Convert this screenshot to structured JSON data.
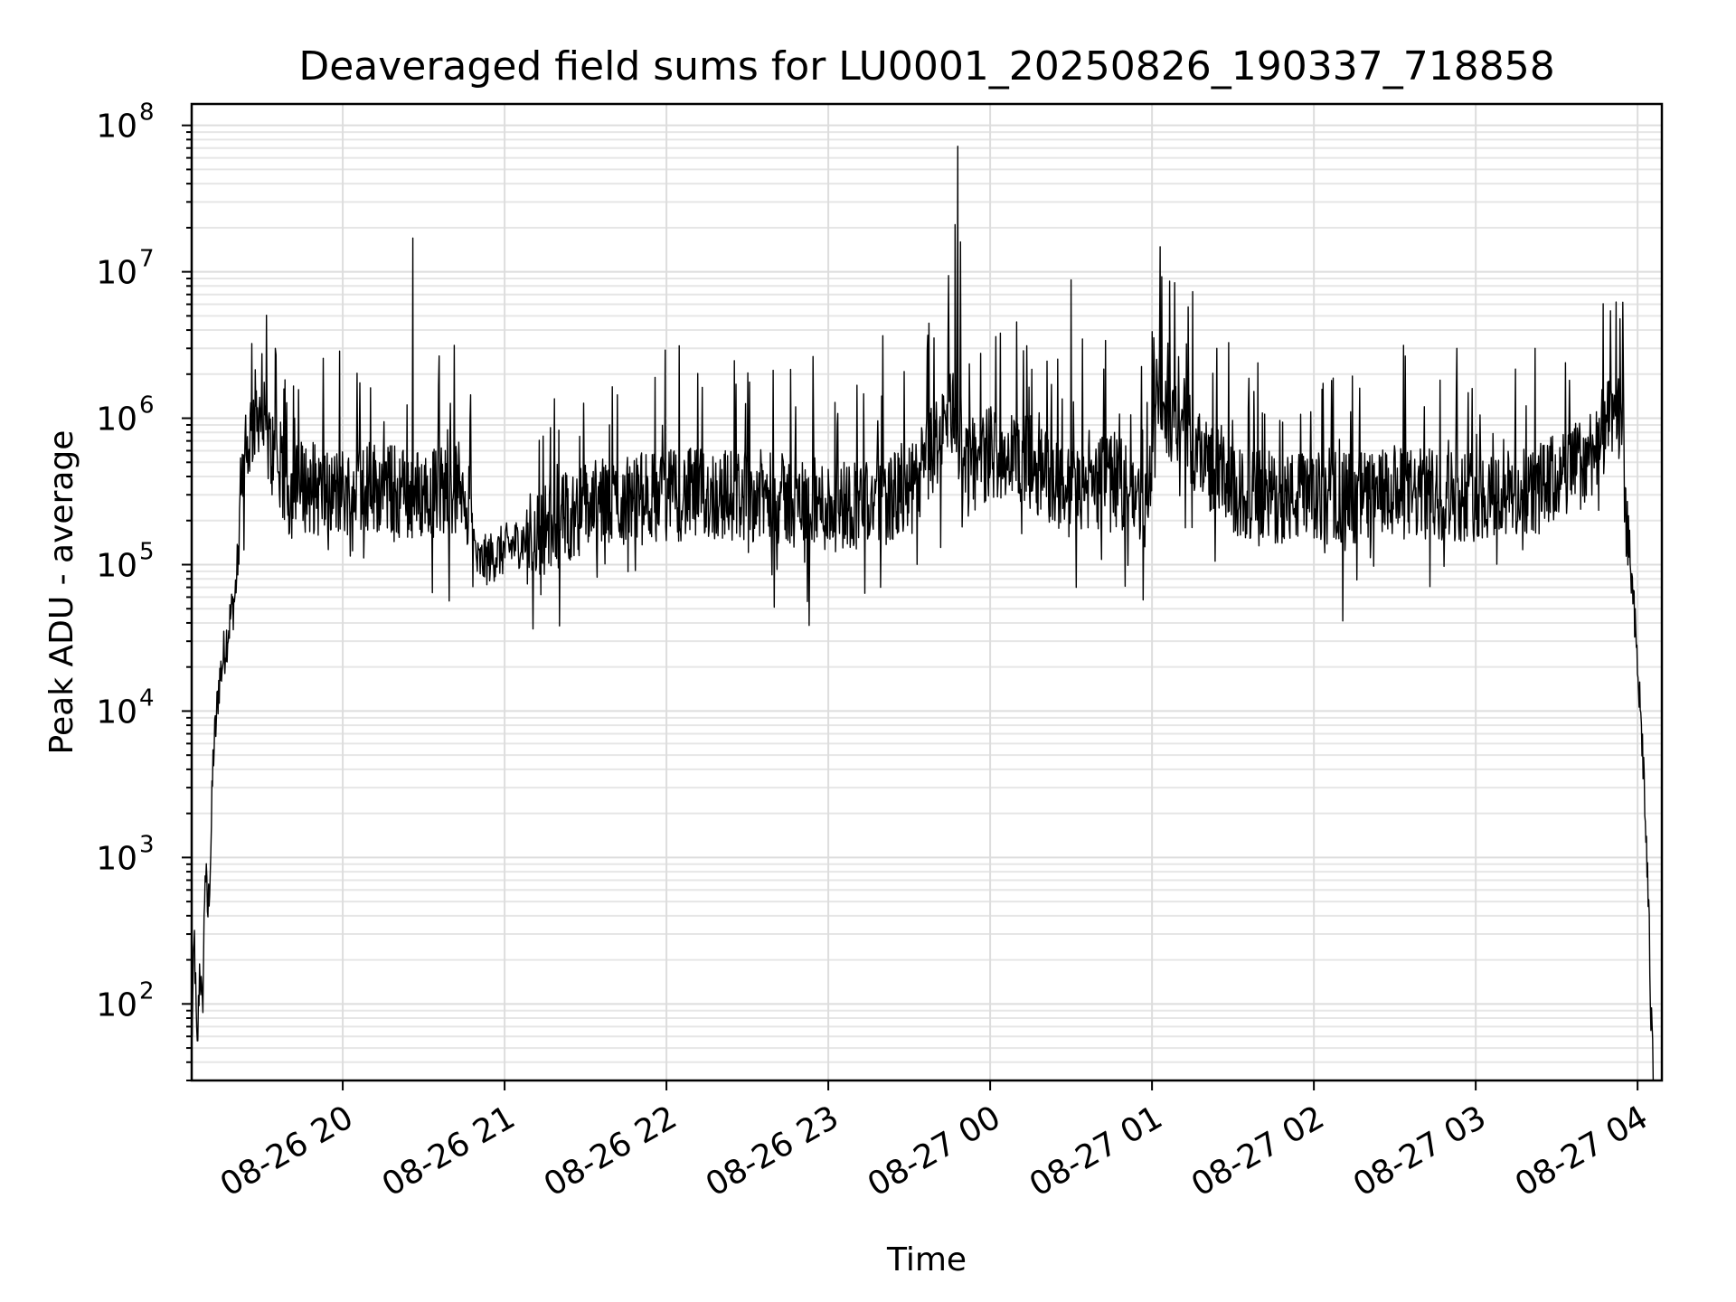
{
  "chart_data": {
    "type": "line",
    "title": "Deaveraged field sums for LU0001_20250826_190337_718858",
    "xlabel": "Time",
    "ylabel": "Peak ADU - average",
    "y_scale": "log",
    "grid": true,
    "grid_minor": true,
    "legend": "none",
    "line_color": "#000000",
    "xlim": [
      "2025-08-26 19:04",
      "2025-08-27 04:09"
    ],
    "ylim": [
      30,
      140000000
    ],
    "x_ticks": [
      {
        "value": "2025-08-26 20:00",
        "label": "08-26 20"
      },
      {
        "value": "2025-08-26 21:00",
        "label": "08-26 21"
      },
      {
        "value": "2025-08-26 22:00",
        "label": "08-26 22"
      },
      {
        "value": "2025-08-26 23:00",
        "label": "08-26 23"
      },
      {
        "value": "2025-08-27 00:00",
        "label": "08-27 00"
      },
      {
        "value": "2025-08-27 01:00",
        "label": "08-27 01"
      },
      {
        "value": "2025-08-27 02:00",
        "label": "08-27 02"
      },
      {
        "value": "2025-08-27 03:00",
        "label": "08-27 03"
      },
      {
        "value": "2025-08-27 04:00",
        "label": "08-27 04"
      }
    ],
    "y_ticks": [
      {
        "value": 100,
        "base": "10",
        "exp": "2"
      },
      {
        "value": 1000,
        "base": "10",
        "exp": "3"
      },
      {
        "value": 10000,
        "base": "10",
        "exp": "4"
      },
      {
        "value": 100000,
        "base": "10",
        "exp": "5"
      },
      {
        "value": 1000000,
        "base": "10",
        "exp": "6"
      },
      {
        "value": 10000000,
        "base": "10",
        "exp": "7"
      },
      {
        "value": 100000000,
        "base": "10",
        "exp": "8"
      }
    ],
    "series": [
      {
        "x": [
          "2025-08-26 19:04",
          "2025-08-26 19:05",
          "2025-08-26 19:06",
          "2025-08-26 19:07",
          "2025-08-26 19:08",
          "2025-08-26 19:09",
          "2025-08-26 19:10",
          "2025-08-26 19:11",
          "2025-08-26 19:12",
          "2025-08-26 19:13",
          "2025-08-26 19:14",
          "2025-08-26 19:16",
          "2025-08-26 19:18",
          "2025-08-26 19:20",
          "2025-08-26 19:21",
          "2025-08-26 19:22",
          "2025-08-26 19:24",
          "2025-08-26 19:25",
          "2025-08-26 19:27",
          "2025-08-26 19:29",
          "2025-08-26 19:32",
          "2025-08-26 19:35",
          "2025-08-26 19:38",
          "2025-08-26 19:40",
          "2025-08-26 19:45",
          "2025-08-26 19:55",
          "2025-08-26 20:10",
          "2025-08-26 20:27",
          "2025-08-26 20:45",
          "2025-08-26 20:50",
          "2025-08-26 21:30",
          "2025-08-26 22:00",
          "2025-08-26 22:30",
          "2025-08-26 23:00",
          "2025-08-26 23:30",
          "2025-08-26 23:47",
          "2025-08-26 23:50",
          "2025-08-27 00:00",
          "2025-08-27 00:15",
          "2025-08-27 00:30",
          "2025-08-27 00:45",
          "2025-08-27 00:58",
          "2025-08-27 01:02",
          "2025-08-27 01:30",
          "2025-08-27 02:00",
          "2025-08-27 02:30",
          "2025-08-27 03:00",
          "2025-08-27 03:20",
          "2025-08-27 03:40",
          "2025-08-27 03:45",
          "2025-08-27 03:50",
          "2025-08-27 03:52",
          "2025-08-27 03:54",
          "2025-08-27 03:56",
          "2025-08-27 03:58",
          "2025-08-27 04:00",
          "2025-08-27 04:02",
          "2025-08-27 04:04",
          "2025-08-27 04:05",
          "2025-08-27 04:06"
        ],
        "y": [
          50,
          300,
          40,
          200,
          80,
          900,
          400,
          1000,
          5000,
          8000,
          15000,
          25000,
          40000,
          60000,
          100000,
          250000,
          400000,
          700000,
          1000000,
          1200000,
          700000,
          500000,
          350000,
          300000,
          350000,
          300000,
          350000,
          300000,
          350000,
          100000,
          250000,
          300000,
          300000,
          250000,
          300000,
          1200000,
          400000,
          600000,
          500000,
          300000,
          400000,
          250000,
          1400000,
          300000,
          280000,
          300000,
          300000,
          300000,
          500000,
          700000,
          900000,
          1200000,
          800000,
          200000,
          70000,
          20000,
          5000,
          500,
          80,
          30
        ]
      }
    ],
    "spikes": [
      {
        "x": "2025-08-26 20:26",
        "y": 17000000
      },
      {
        "x": "2025-08-26 23:48",
        "y": 72000000
      },
      {
        "x": "2025-08-26 23:47",
        "y": 21000000
      },
      {
        "x": "2025-08-26 23:49",
        "y": 16000000
      },
      {
        "x": "2025-08-27 00:30",
        "y": 8800000
      },
      {
        "x": "2025-08-27 01:03",
        "y": 14800000
      },
      {
        "x": "2025-08-26 19:35",
        "y": 3000000
      },
      {
        "x": "2025-08-27 02:53",
        "y": 3000000
      },
      {
        "x": "2025-08-27 03:22",
        "y": 3000000
      }
    ]
  }
}
